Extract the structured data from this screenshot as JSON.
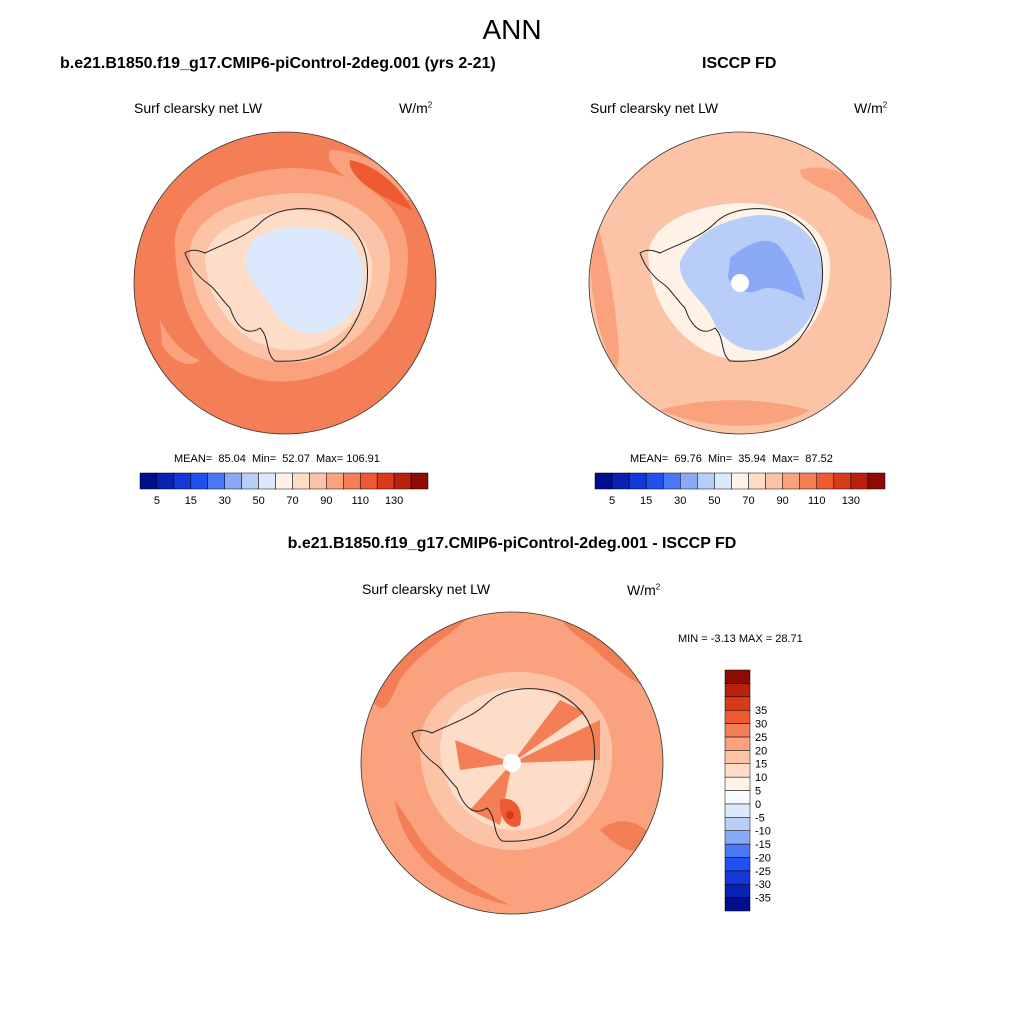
{
  "page": {
    "title": "ANN"
  },
  "panels": [
    {
      "case_title": "b.e21.B1850.f19_g17.CMIP6-piControl-2deg.001 (yrs 2-21)",
      "variable": "Surf clearsky net LW",
      "units_base": "W/m",
      "units_exp": "2",
      "stats": {
        "mean_label": "MEAN=",
        "mean": "85.04",
        "min_label": "Min=",
        "min": "52.07",
        "max_label": "Max=",
        "max": "106.91"
      }
    },
    {
      "case_title": "ISCCP FD",
      "variable": "Surf clearsky net LW",
      "units_base": "W/m",
      "units_exp": "2",
      "stats": {
        "mean_label": "MEAN=",
        "mean": "69.76",
        "min_label": "Min=",
        "min": "35.94",
        "max_label": "Max=",
        "max": "87.52"
      }
    },
    {
      "case_title": "b.e21.B1850.f19_g17.CMIP6-piControl-2deg.001 - ISCCP FD",
      "variable": "Surf clearsky net LW",
      "units_base": "W/m",
      "units_exp": "2",
      "stats": {
        "text": "MIN =  -3.13 MAX =  28.71"
      }
    }
  ],
  "colorbar_abs": {
    "colors": [
      "#000d8c",
      "#0a22b4",
      "#1437d8",
      "#2050f0",
      "#4a78f5",
      "#8aaaf5",
      "#b8cdf8",
      "#dce8fc",
      "#fff2e6",
      "#fddcc8",
      "#fcc3a6",
      "#f9a27d",
      "#f47e55",
      "#ee5a32",
      "#da3a1a",
      "#b8220c",
      "#8c0c04"
    ],
    "ticks": [
      "5",
      "15",
      "30",
      "50",
      "70",
      "90",
      "110",
      "130"
    ]
  },
  "colorbar_diff": {
    "colors": [
      "#000d8c",
      "#0a22b4",
      "#1437d8",
      "#2050f0",
      "#4a78f5",
      "#8aaaf5",
      "#b8cdf8",
      "#dce8fc",
      "#f8fbff",
      "#fff2e6",
      "#fddcc8",
      "#fcc3a6",
      "#f9a27d",
      "#f47e55",
      "#ee5a32",
      "#da3a1a",
      "#b8220c",
      "#8c0c04"
    ],
    "ticks": [
      "-35",
      "-30",
      "-25",
      "-20",
      "-15",
      "-10",
      "-5",
      "0",
      "5",
      "10",
      "15",
      "20",
      "25",
      "30",
      "35"
    ]
  },
  "map_colors": {
    "outer_model": "#f47e55",
    "mid_model": "#f9a27d",
    "ring_model": "#fcc3a6",
    "coast_model": "#fddcc8",
    "inner_model": "#fff2e6",
    "plateau_model": "#dce8fc",
    "outer_obs": "#fcc3a6",
    "patch_obs": "#f9a27d",
    "inner_obs": "#fff2e6",
    "plateau_obs": "#b8cdf8",
    "deep_obs": "#8aaaf5",
    "diff_outer": "#f9a27d",
    "diff_ring": "#fcc3a6",
    "diff_inner": "#fddcc8",
    "diff_hot": "#f47e55",
    "diff_hotter": "#ee5a32",
    "diff_max": "#da3a1a",
    "coastline": "#222222"
  }
}
